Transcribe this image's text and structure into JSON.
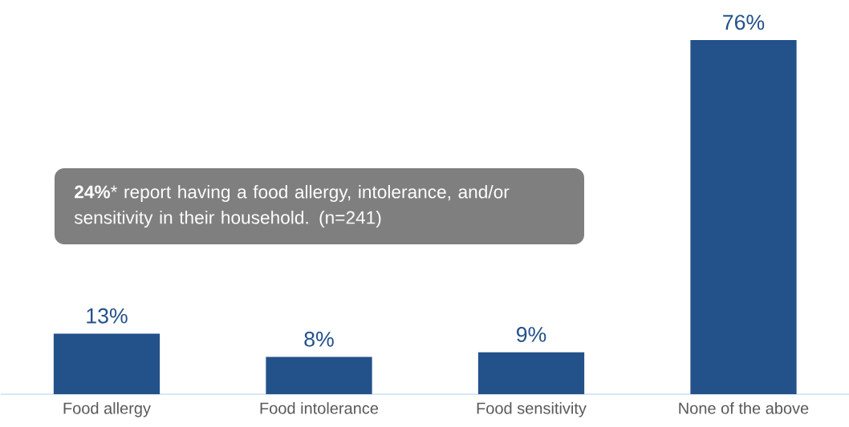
{
  "chart_data": {
    "type": "bar",
    "categories": [
      "Food allergy",
      "Food intolerance",
      "Food sensitivity",
      "None of the above"
    ],
    "values": [
      13,
      8,
      9,
      76
    ],
    "value_labels": [
      "13%",
      "8%",
      "9%",
      "76%"
    ],
    "color": "#23518a",
    "annotations": [
      "**24%*** report having a food allergy, intolerance, and/or sensitivity in their household. (n=241)"
    ]
  }
}
